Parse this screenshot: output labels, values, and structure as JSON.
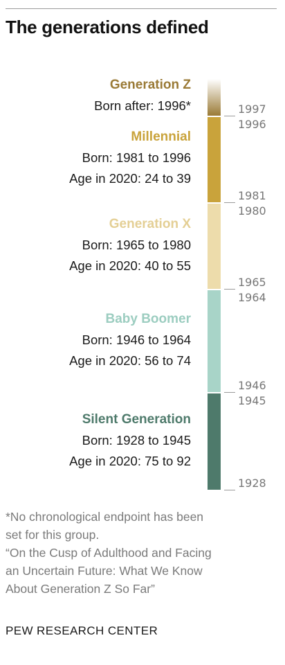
{
  "title": "The generations defined",
  "colors": {
    "gen_z": "#9a7a36",
    "millennial": "#c9a33b",
    "gen_x": "#eddcab",
    "boomer": "#a8d4c8",
    "silent": "#4e7a6b",
    "tick": "#9a9a9a",
    "note": "#7a7a7a"
  },
  "chart_data": {
    "type": "bar",
    "orientation": "vertical-stacked",
    "axis": "birth year",
    "ylim": [
      1928,
      2004
    ],
    "generations": [
      {
        "name": "Generation Z",
        "born_label": "Born after: 1996*",
        "age_label": "",
        "start": 1997,
        "end": null,
        "color": "#9a7a36",
        "label_color": "#9a7a36",
        "start_label": "1997",
        "end_label": ""
      },
      {
        "name": "Millennial",
        "born_label": "Born: 1981 to 1996",
        "age_label": "Age in 2020: 24 to 39",
        "start": 1981,
        "end": 1996,
        "color": "#c9a33b",
        "label_color": "#c9a33b",
        "start_label": "1981",
        "end_label": "1996"
      },
      {
        "name": "Generation X",
        "born_label": "Born: 1965 to 1980",
        "age_label": "Age in 2020: 40 to 55",
        "start": 1965,
        "end": 1980,
        "color": "#eddcab",
        "label_color": "#e4cf95",
        "start_label": "1965",
        "end_label": "1980"
      },
      {
        "name": "Baby Boomer",
        "born_label": "Born: 1946 to 1964",
        "age_label": "Age in 2020: 56 to 74",
        "start": 1946,
        "end": 1964,
        "color": "#a8d4c8",
        "label_color": "#9ccdc0",
        "start_label": "1946",
        "end_label": "1964"
      },
      {
        "name": "Silent Generation",
        "born_label": "Born: 1928 to 1945",
        "age_label": "Age in 2020: 75 to 92",
        "start": 1928,
        "end": 1945,
        "color": "#4e7a6b",
        "label_color": "#4e7a6b",
        "start_label": "1928",
        "end_label": "1945"
      }
    ]
  },
  "notes": {
    "line1": "*No chronological endpoint has been",
    "line2": "set for this group.",
    "line3": "“On the Cusp of Adulthood and Facing",
    "line4": "an Uncertain Future: What We Know",
    "line5": "About Generation Z So Far”"
  },
  "source": "PEW RESEARCH CENTER"
}
